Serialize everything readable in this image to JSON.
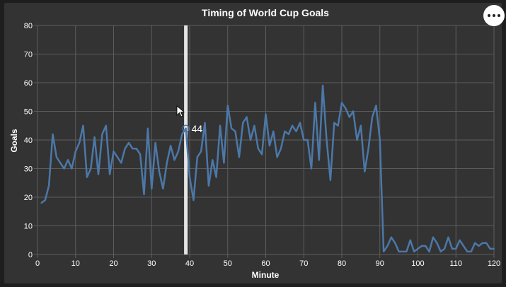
{
  "colors": {
    "background": "#333333",
    "line": "#4c78a8",
    "grid": "#5c5c5c",
    "rule": "#e6e6e6",
    "text": "#ffffff"
  },
  "menu": {
    "icon": "ellipsis-icon"
  },
  "hover": {
    "x": 39,
    "y": 44,
    "label": "44"
  },
  "chart_data": {
    "type": "line",
    "title": "Timing of World Cup Goals",
    "xlabel": "Minute",
    "ylabel": "Goals",
    "xlim": [
      0,
      120
    ],
    "ylim": [
      0,
      80
    ],
    "grid": true,
    "x_ticks": [
      0,
      10,
      20,
      30,
      40,
      50,
      60,
      70,
      80,
      90,
      100,
      110,
      120
    ],
    "y_ticks": [
      0,
      10,
      20,
      30,
      40,
      50,
      60,
      70,
      80
    ],
    "series": [
      {
        "x": [
          1,
          2,
          3,
          4,
          5,
          6,
          7,
          8,
          9,
          10,
          11,
          12,
          13,
          14,
          15,
          16,
          17,
          18,
          19,
          20,
          21,
          22,
          23,
          24,
          25,
          26,
          27,
          28,
          29,
          30,
          31,
          32,
          33,
          34,
          35,
          36,
          37,
          38,
          39,
          40,
          41,
          42,
          43,
          44,
          45,
          46,
          47,
          48,
          49,
          50,
          51,
          52,
          53,
          54,
          55,
          56,
          57,
          58,
          59,
          60,
          61,
          62,
          63,
          64,
          65,
          66,
          67,
          68,
          69,
          70,
          71,
          72,
          73,
          74,
          75,
          76,
          77,
          78,
          79,
          80,
          81,
          82,
          83,
          84,
          85,
          86,
          87,
          88,
          89,
          90,
          91,
          92,
          93,
          94,
          95,
          96,
          97,
          98,
          99,
          100,
          101,
          102,
          103,
          104,
          105,
          106,
          107,
          108,
          109,
          110,
          111,
          112,
          113,
          114,
          115,
          116,
          117,
          118,
          119,
          120
        ],
        "y": [
          18,
          19,
          24,
          42,
          34,
          32,
          30,
          33,
          30,
          36,
          39,
          45,
          27,
          30,
          41,
          28,
          42,
          45,
          28,
          36,
          34,
          32,
          37,
          39,
          37,
          37,
          35,
          21,
          44,
          23,
          39,
          29,
          23,
          32,
          38,
          33,
          36,
          42,
          44,
          27,
          19,
          34,
          36,
          46,
          24,
          33,
          27,
          45,
          32,
          52,
          44,
          43,
          34,
          46,
          48,
          40,
          45,
          37,
          35,
          49,
          38,
          43,
          34,
          37,
          43,
          42,
          45,
          43,
          46,
          40,
          40,
          30,
          53,
          33,
          59,
          40,
          26,
          46,
          45,
          53,
          51,
          48,
          50,
          40,
          45,
          29,
          37,
          48,
          52,
          40,
          1,
          3,
          6,
          4,
          1,
          1,
          1,
          5,
          1,
          2,
          3,
          3,
          1,
          6,
          4,
          1,
          2,
          6,
          2,
          2,
          5,
          3,
          1,
          1,
          4,
          3,
          4,
          4,
          2,
          2
        ]
      }
    ]
  }
}
